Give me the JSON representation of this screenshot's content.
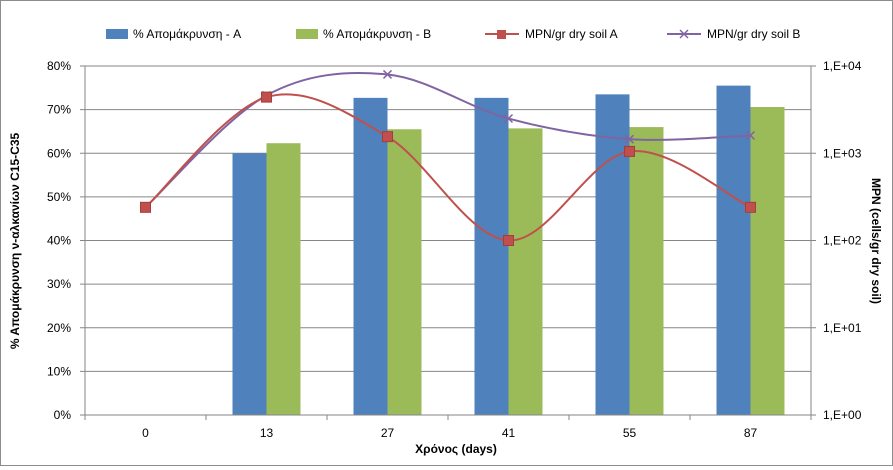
{
  "chart_data": {
    "type": "bar",
    "categories": [
      "0",
      "13",
      "27",
      "41",
      "55",
      "87"
    ],
    "xlabel": "Χρόνος (days)",
    "ylabel": "% Απομάκρυνση ν-αλκανίων C15-C35",
    "y2label": "MPN (cells/gr dry soil)",
    "ylim": [
      0,
      0.8
    ],
    "y_ticks": [
      "0%",
      "10%",
      "20%",
      "30%",
      "40%",
      "50%",
      "60%",
      "70%",
      "80%"
    ],
    "y2_scale": "log",
    "y2lim": [
      1,
      10000
    ],
    "y2_ticks": [
      "1,E+00",
      "1,E+01",
      "1,E+02",
      "1,E+03",
      "1,E+04"
    ],
    "grid": "horizontal",
    "legend": "top",
    "bar_series": [
      {
        "name": "% Απομάκρυνση - A",
        "color": "#4f81bd",
        "values": [
          null,
          0.6,
          0.727,
          0.727,
          0.735,
          0.755
        ]
      },
      {
        "name": "% Απομάκρυνση - B",
        "color": "#9bbb59",
        "values": [
          null,
          0.623,
          0.655,
          0.657,
          0.66,
          0.706
        ]
      }
    ],
    "line_series": [
      {
        "name": "MPN/gr dry soil A",
        "color": "#c0504d",
        "marker": "square",
        "values": [
          240,
          4400,
          1550,
          100,
          1050,
          240
        ]
      },
      {
        "name": "MPN/gr dry soil B",
        "color": "#8064a2",
        "marker": "x",
        "values": [
          240,
          4600,
          8000,
          2500,
          1450,
          1600
        ]
      }
    ]
  }
}
